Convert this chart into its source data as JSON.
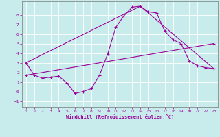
{
  "xlabel": "Windchill (Refroidissement éolien,°C)",
  "background_color": "#c8ecec",
  "line_color": "#990099",
  "grid_color": "#ffffff",
  "xlim": [
    -0.5,
    23.5
  ],
  "ylim": [
    -1.6,
    9.4
  ],
  "xticks": [
    0,
    1,
    2,
    3,
    4,
    5,
    6,
    7,
    8,
    9,
    10,
    11,
    12,
    13,
    14,
    15,
    16,
    17,
    18,
    19,
    20,
    21,
    22,
    23
  ],
  "yticks": [
    -1,
    0,
    1,
    2,
    3,
    4,
    5,
    6,
    7,
    8
  ],
  "curve1_x": [
    0,
    1,
    2,
    3,
    4,
    5,
    6,
    7,
    8,
    9,
    10,
    11,
    12,
    13,
    14,
    15,
    16,
    17,
    18,
    19,
    20,
    21,
    22,
    23
  ],
  "curve1_y": [
    3.0,
    1.7,
    1.4,
    1.5,
    1.6,
    0.9,
    -0.2,
    0.0,
    0.3,
    1.7,
    3.9,
    6.7,
    7.9,
    8.8,
    8.9,
    8.3,
    8.2,
    6.3,
    5.4,
    5.0,
    3.2,
    2.7,
    2.5,
    2.4
  ],
  "curve2_x": [
    0,
    14,
    23
  ],
  "curve2_y": [
    3.0,
    8.9,
    2.4
  ],
  "curve3_x": [
    0,
    23
  ],
  "curve3_y": [
    1.7,
    5.0
  ],
  "figwidth": 3.2,
  "figheight": 2.0,
  "dpi": 100
}
